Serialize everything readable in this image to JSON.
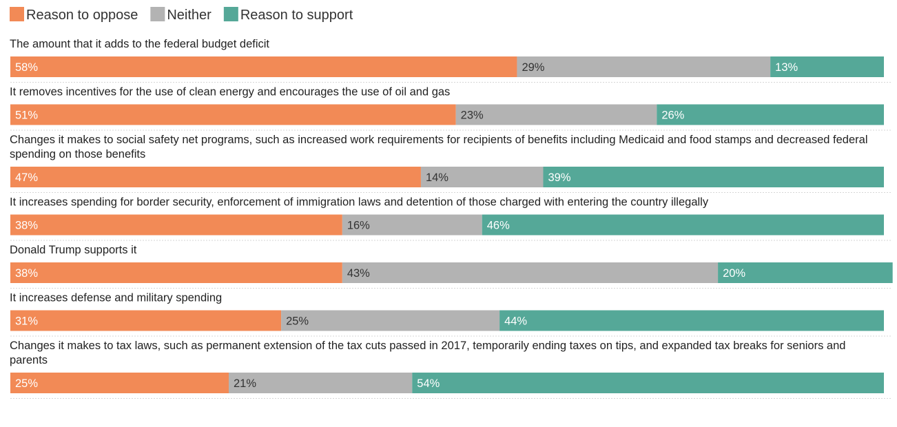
{
  "chart_data": {
    "type": "bar",
    "orientation": "horizontal",
    "stacked": true,
    "normalized": true,
    "legend": [
      {
        "name": "Reason to oppose",
        "color": "#f28a56"
      },
      {
        "name": "Neither",
        "color": "#b3b3b3"
      },
      {
        "name": "Reason to support",
        "color": "#55a898"
      }
    ],
    "categories": [
      "The amount that it adds to the federal budget deficit",
      "It removes incentives for the use of clean energy and encourages the use of oil and gas",
      "Changes it makes to social safety net programs, such as increased work requirements for recipients of benefits including Medicaid and food stamps and decreased federal spending on those benefits",
      "It increases spending for border security, enforcement of immigration laws and detention of those charged with entering the country illegally",
      "Donald Trump supports it",
      "It increases defense and military spending",
      "Changes it makes to tax laws, such as permanent extension of the tax cuts passed in 2017, temporarily ending taxes on tips, and expanded tax breaks for seniors and parents"
    ],
    "series": [
      {
        "name": "Reason to oppose",
        "values": [
          58,
          51,
          47,
          38,
          38,
          31,
          25
        ],
        "labels": [
          "58%",
          "51%",
          "47%",
          "38%",
          "38%",
          "31%",
          "25%"
        ]
      },
      {
        "name": "Neither",
        "values": [
          29,
          23,
          14,
          16,
          43,
          25,
          21
        ],
        "labels": [
          "29%",
          "23%",
          "14%",
          "16%",
          "43%",
          "25%",
          "21%"
        ]
      },
      {
        "name": "Reason to support",
        "values": [
          13,
          26,
          39,
          46,
          20,
          44,
          54
        ],
        "labels": [
          "13%",
          "26%",
          "39%",
          "46%",
          "20%",
          "44%",
          "54%"
        ]
      }
    ],
    "xlim": [
      0,
      100
    ],
    "title": "",
    "xlabel": "",
    "ylabel": ""
  }
}
